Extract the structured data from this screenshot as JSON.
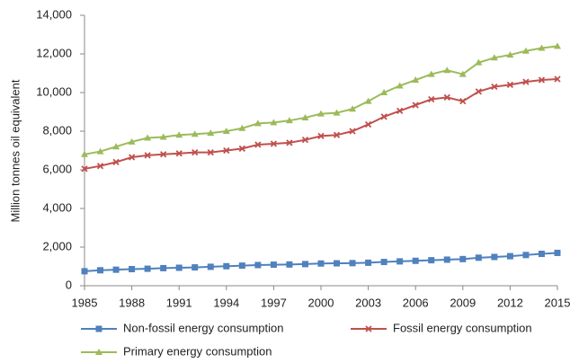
{
  "chart_data": {
    "type": "line",
    "ylabel": "Million tonnes oil equivalent",
    "x": [
      1985,
      1986,
      1987,
      1988,
      1989,
      1990,
      1991,
      1992,
      1993,
      1994,
      1995,
      1996,
      1997,
      1998,
      1999,
      2000,
      2001,
      2002,
      2003,
      2004,
      2005,
      2006,
      2007,
      2008,
      2009,
      2010,
      2011,
      2012,
      2013,
      2014,
      2015
    ],
    "xlim": [
      1985,
      2015
    ],
    "xticks": [
      1985,
      1988,
      1991,
      1994,
      1997,
      2000,
      2003,
      2006,
      2009,
      2012,
      2015
    ],
    "ylim": [
      0,
      14000
    ],
    "yticks": [
      0,
      {
        "value": 2000,
        "label": "2,000"
      },
      {
        "value": 4000,
        "label": "4,000"
      },
      {
        "value": 6000,
        "label": "6,000"
      },
      {
        "value": 8000,
        "label": "8,000"
      },
      {
        "value": 10000,
        "label": "10,000"
      },
      {
        "value": 12000,
        "label": "12,000"
      },
      {
        "value": 14000,
        "label": "14,000"
      }
    ],
    "series": [
      {
        "name": "Non-fossil energy consumption",
        "color": "#4f81bd",
        "marker": "square",
        "values": [
          750,
          800,
          830,
          860,
          880,
          910,
          930,
          950,
          980,
          1010,
          1040,
          1070,
          1090,
          1100,
          1120,
          1150,
          1160,
          1170,
          1190,
          1230,
          1260,
          1290,
          1320,
          1350,
          1380,
          1450,
          1490,
          1530,
          1590,
          1650,
          1700
        ]
      },
      {
        "name": "Fossil energy consumption",
        "color": "#c0504d",
        "marker": "x",
        "values": [
          6050,
          6200,
          6400,
          6650,
          6750,
          6800,
          6850,
          6900,
          6900,
          7000,
          7100,
          7300,
          7350,
          7400,
          7550,
          7750,
          7800,
          8000,
          8350,
          8750,
          9050,
          9350,
          9650,
          9750,
          9550,
          10050,
          10300,
          10400,
          10550,
          10650,
          10700
        ]
      },
      {
        "name": "Primary energy consumption",
        "color": "#9bbb59",
        "marker": "triangle",
        "values": [
          6800,
          6950,
          7200,
          7450,
          7650,
          7700,
          7800,
          7850,
          7900,
          8000,
          8150,
          8400,
          8450,
          8550,
          8700,
          8900,
          8950,
          9150,
          9550,
          10000,
          10350,
          10650,
          10950,
          11150,
          10950,
          11550,
          11800,
          11950,
          12150,
          12300,
          12400
        ]
      }
    ]
  }
}
